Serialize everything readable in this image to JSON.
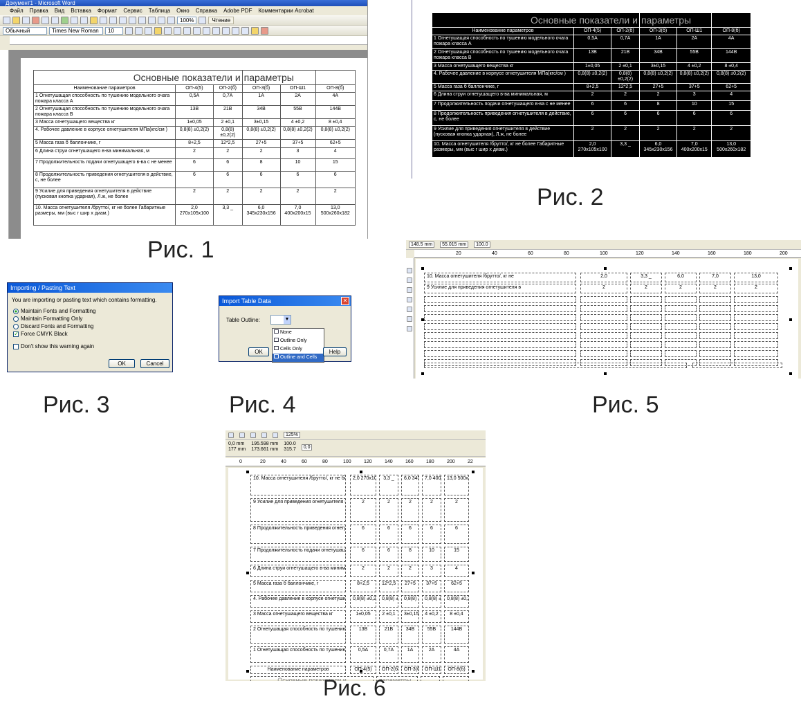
{
  "word": {
    "title": "Документ1 - Microsoft Word",
    "menu": [
      "Файл",
      "Правка",
      "Вид",
      "Вставка",
      "Формат",
      "Сервис",
      "Таблица",
      "Окно",
      "Справка",
      "Adobe PDF",
      "Комментарии Acrobat"
    ],
    "zoom": "100%",
    "reading": "Чтение",
    "style": "Обычный",
    "font": "Times New Roman",
    "size": "10"
  },
  "table": {
    "title_left": "Основные показатели и",
    "title_right": "параметры",
    "headers": [
      "Наименование параметров",
      "ОП-4(5)",
      "ОП-2(б)",
      "ОП-3(б)",
      "ОП-Ш1",
      "ОП-8(б)"
    ],
    "rows": [
      {
        "label": "1 Огнетушащая способность по тушению модельного очага пожара класса А",
        "v": [
          "0,5А",
          "0,7А",
          "1А",
          "2А",
          "4А"
        ]
      },
      {
        "label": "2 Огнетушащая способность по тушению модельного очага пожара класса В",
        "v": [
          "13В",
          "21В",
          "34В",
          "55В",
          "144В"
        ]
      },
      {
        "label": "3 Масса огнетушащего вещества кг",
        "v": [
          "1±0,05",
          "2 ±0,1",
          "3±0,15",
          "4 ±0,2",
          "8 ±0,4"
        ]
      },
      {
        "label": "4. Рабочее давление в корпусе огнетушителя МПа(кгс/см )",
        "v": [
          "0,8(8) ±0,2(2)",
          "0,8(8) ±0,2(2)",
          "0,8(8) ±0,2(2)",
          "0,8(8) ±0,2(2)",
          "0,8(8) ±0,2(2)"
        ]
      },
      {
        "label": "5 Масса газа б баллончике, г",
        "v": [
          "8+2,5",
          "12*2,5",
          "27+5",
          "37+5",
          "62+5"
        ]
      },
      {
        "label": "6 Длина струи огнетушащего в-ва минимальная, м",
        "v": [
          "2",
          "2",
          "2",
          "3",
          "4"
        ]
      },
      {
        "label": "7 Продолжительность подачи огнетушащего в-ва с не менее",
        "v": [
          "6",
          "6",
          "8",
          "10",
          "15"
        ]
      },
      {
        "label": "8 Продолжительность приведения огнетушителя в действие, с, не более",
        "v": [
          "6",
          "6",
          "6",
          "6",
          "6"
        ]
      },
      {
        "label": "9 Усилие для приведения огнетушителя в действие (пусковая кнопка ударная), Л.ж, не более",
        "v": [
          "2",
          "2",
          "2",
          "2",
          "2"
        ]
      },
      {
        "label": "10. Масса огнетушителя /брутто/, кг не более Габаритные размеры, мм (выс г шир х диам.)",
        "v": [
          "2,0 270х105х100",
          "3,3 _",
          "6,0 345х230х156",
          "7,0 400х200х15",
          "13,0 500х260х182"
        ]
      }
    ]
  },
  "dialog3": {
    "title": "Importing / Pasting Text",
    "message": "You are importing or pasting text which contains formatting.",
    "options": [
      "Maintain Fonts and Formatting",
      "Maintain Formatting Only",
      "Discard Fonts and Formatting"
    ],
    "force_cmyk": "Force CMYK Black",
    "dont_show": "Don't show this warning again",
    "ok": "OK",
    "cancel": "Cancel"
  },
  "dialog4": {
    "title": "Import Table Data",
    "label": "Table Outline:",
    "options": [
      "None",
      "Outline Only",
      "Cells Only",
      "Outline and Cells"
    ],
    "ok": "OK",
    "help": "Help"
  },
  "cad5": {
    "w": "148.5 mm",
    "h": "55.015 mm",
    "scale": "100.0",
    "ruler": [
      "20",
      "40",
      "60",
      "80",
      "100",
      "120",
      "140",
      "160",
      "180",
      "200"
    ],
    "row1_label": "10. Масса огнетушителя /брутто/, кг не",
    "row1_vals": [
      "2,0",
      "3,3 _",
      "6,0",
      "7,0",
      "13,0"
    ],
    "row2_label": "9 Усилие для приведения огнетушителя в",
    "row2_vals": [
      "2",
      "2",
      "2",
      "2",
      "2"
    ]
  },
  "cad6": {
    "x": "0,0 mm",
    "y": "177 mm",
    "w": "195.598 mm",
    "h": "173.661 mm",
    "scale_w": "100.0",
    "scale_h": "315.7",
    "angle": "0,0",
    "zoom": "125%",
    "ruler": [
      "0",
      "20",
      "40",
      "60",
      "80",
      "100",
      "120",
      "140",
      "160",
      "180",
      "200",
      "22"
    ],
    "title_left": "Основные показатели и",
    "title_right": "параметры"
  },
  "captions": {
    "f1": "Рис. 1",
    "f2": "Рис. 2",
    "f3": "Рис. 3",
    "f4": "Рис. 4",
    "f5": "Рис. 5",
    "f6": "Рис. 6"
  }
}
